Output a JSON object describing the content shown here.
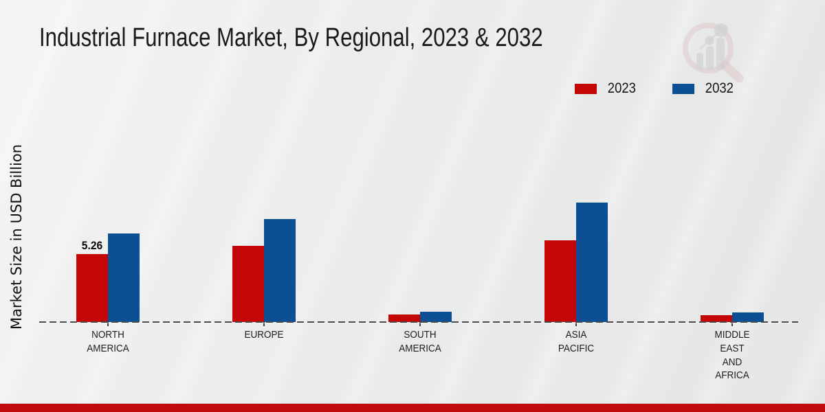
{
  "title": "Industrial Furnace Market, By Regional, 2023 & 2032",
  "legend": [
    {
      "label": "2023",
      "color": "#c40606"
    },
    {
      "label": "2032",
      "color": "#0d4f94"
    }
  ],
  "accent": {
    "bottom_bar_color": "#c20b0b",
    "baseline_color": "#4a4a4a"
  },
  "watermark": {
    "icon": "magnifier-bar-chart-logo"
  },
  "chart_data": {
    "type": "bar",
    "title": "Industrial Furnace Market, By Regional, 2023 & 2032",
    "ylabel": "Market Size in USD Billion",
    "xlabel": "",
    "categories": [
      "NORTH AMERICA",
      "EUROPE",
      "SOUTH AMERICA",
      "ASIA PACIFIC",
      "MIDDLE EAST AND AFRICA"
    ],
    "label_lines": [
      [
        "NORTH",
        "AMERICA"
      ],
      [
        "EUROPE"
      ],
      [
        "SOUTH",
        "AMERICA"
      ],
      [
        "ASIA",
        "PACIFIC"
      ],
      [
        "MIDDLE",
        "EAST",
        "AND",
        "AFRICA"
      ]
    ],
    "series": [
      {
        "name": "2023",
        "color": "#c40606",
        "values": [
          5.26,
          5.9,
          0.6,
          6.32,
          0.55
        ]
      },
      {
        "name": "2032",
        "color": "#0d4f94",
        "values": [
          6.85,
          7.97,
          0.8,
          9.25,
          0.75
        ]
      }
    ],
    "annotations": [
      {
        "series_index": 0,
        "category_index": 0,
        "text": "5.26"
      }
    ],
    "ylim": [
      0,
      10
    ],
    "grid": false,
    "legend_position": "top-right",
    "baseline_style": "dashed"
  }
}
